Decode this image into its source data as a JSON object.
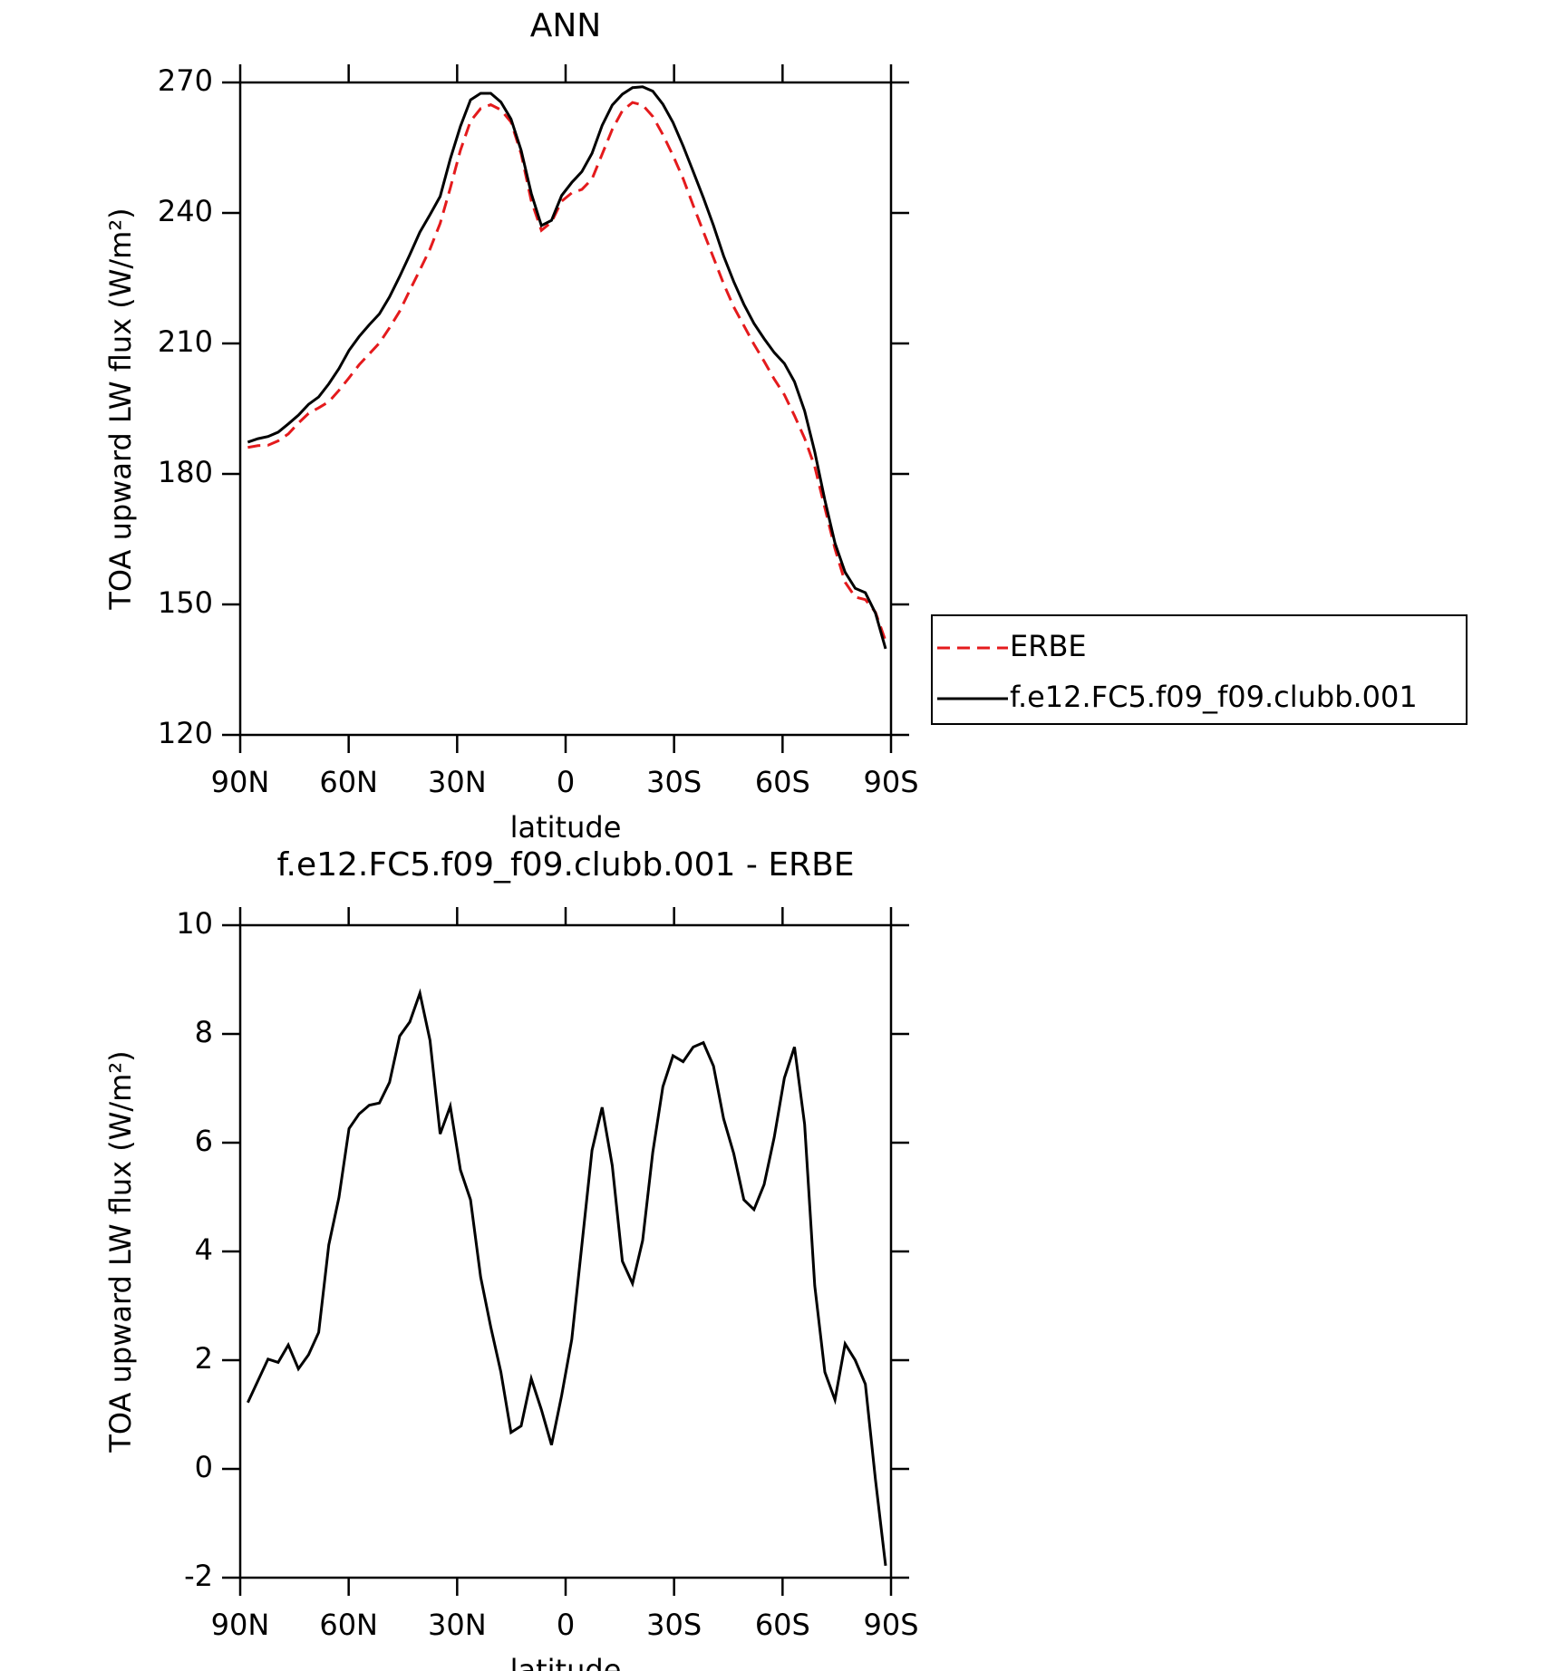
{
  "chart_data": [
    {
      "type": "line",
      "title": "ANN",
      "xlabel": "latitude",
      "ylabel": "TOA upward LW flux (W/m²)",
      "x": [
        87.9,
        85.1,
        82.3,
        79.5,
        76.7,
        73.9,
        71.1,
        68.3,
        65.5,
        62.7,
        59.9,
        57.1,
        54.3,
        51.5,
        48.7,
        45.9,
        43.1,
        40.3,
        37.5,
        34.7,
        31.9,
        29.1,
        26.3,
        23.5,
        20.7,
        17.9,
        15.1,
        12.3,
        9.5,
        6.7,
        3.9,
        1.1,
        -1.7,
        -4.5,
        -7.3,
        -10.1,
        -12.9,
        -15.7,
        -18.5,
        -21.3,
        -24.1,
        -26.9,
        -29.7,
        -32.5,
        -35.3,
        -38.1,
        -40.9,
        -43.7,
        -46.5,
        -49.3,
        -52.1,
        -54.9,
        -57.7,
        -60.5,
        -63.3,
        -66.1,
        -68.9,
        -71.7,
        -74.5,
        -77.3,
        -80.1,
        -82.9,
        -85.7,
        -88.5
      ],
      "series": [
        {
          "name": "ERBE",
          "color": "#e41a1c",
          "style": "dashed",
          "values": [
            186.1,
            186.5,
            186.6,
            187.6,
            189.2,
            191.7,
            193.9,
            195.2,
            196.6,
            199.2,
            202.1,
            205.1,
            207.6,
            210.1,
            213.6,
            217.4,
            222.2,
            226.9,
            231.7,
            237.6,
            245.7,
            254.4,
            261.1,
            264.0,
            264.9,
            263.7,
            260.9,
            253.6,
            242.8,
            236.0,
            237.9,
            242.7,
            244.6,
            245.4,
            247.8,
            253.5,
            259.2,
            263.5,
            265.4,
            264.8,
            262.2,
            258.0,
            253.2,
            247.9,
            241.7,
            235.7,
            229.7,
            223.7,
            218.4,
            214.1,
            209.8,
            205.9,
            201.8,
            198.2,
            193.4,
            188.2,
            181.7,
            172.2,
            162.8,
            155.1,
            151.7,
            151.1,
            148.2,
            141.6
          ]
        },
        {
          "name": "f.e12.FC5.f09_f09.clubb.001",
          "color": "#000000",
          "style": "solid",
          "values": [
            187.3,
            188.1,
            188.6,
            189.6,
            191.5,
            193.5,
            196.0,
            197.7,
            200.7,
            204.2,
            208.4,
            211.6,
            214.3,
            216.8,
            220.7,
            225.4,
            230.4,
            235.6,
            239.6,
            243.8,
            252.4,
            259.9,
            266.0,
            267.5,
            267.5,
            265.5,
            261.6,
            254.4,
            244.5,
            237.1,
            238.3,
            244.0,
            247.0,
            249.5,
            253.7,
            260.1,
            264.8,
            267.3,
            268.8,
            269.0,
            268.0,
            265.0,
            260.8,
            255.4,
            249.5,
            243.5,
            237.1,
            230.1,
            224.2,
            219.0,
            214.6,
            211.1,
            207.9,
            205.4,
            201.2,
            194.5,
            185.1,
            174.0,
            164.1,
            157.4,
            153.7,
            152.7,
            148.0,
            139.8
          ]
        }
      ],
      "xlim": [
        90,
        -90
      ],
      "xticks": [
        {
          "value": 90,
          "label": "90N"
        },
        {
          "value": 60,
          "label": "60N"
        },
        {
          "value": 30,
          "label": "30N"
        },
        0,
        {
          "value": -30,
          "label": "30S"
        },
        {
          "value": -60,
          "label": "60S"
        },
        {
          "value": -90,
          "label": "90S"
        }
      ],
      "ylim": [
        120,
        270
      ],
      "yticks": [
        120,
        150,
        180,
        210,
        240,
        270
      ],
      "legend": "right"
    },
    {
      "type": "line",
      "title": "f.e12.FC5.f09_f09.clubb.001 - ERBE",
      "xlabel": "latitude",
      "ylabel": "TOA upward LW flux (W/m²)",
      "x": [
        87.9,
        85.1,
        82.3,
        79.5,
        76.7,
        73.9,
        71.1,
        68.3,
        65.5,
        62.7,
        59.9,
        57.1,
        54.3,
        51.5,
        48.7,
        45.9,
        43.1,
        40.3,
        37.5,
        34.7,
        31.9,
        29.1,
        26.3,
        23.5,
        20.7,
        17.9,
        15.1,
        12.3,
        9.5,
        6.7,
        3.9,
        1.1,
        -1.7,
        -4.5,
        -7.3,
        -10.1,
        -12.9,
        -15.7,
        -18.5,
        -21.3,
        -24.1,
        -26.9,
        -29.7,
        -32.5,
        -35.3,
        -38.1,
        -40.9,
        -43.7,
        -46.5,
        -49.3,
        -52.1,
        -54.9,
        -57.7,
        -60.5,
        -63.3,
        -66.1,
        -68.9,
        -71.7,
        -74.5,
        -77.3,
        -80.1,
        -82.9,
        -85.7,
        -88.5
      ],
      "color": "#000000",
      "values": [
        1.22,
        1.62,
        2.02,
        1.96,
        2.28,
        1.84,
        2.1,
        2.51,
        4.12,
        4.99,
        6.26,
        6.53,
        6.69,
        6.73,
        7.11,
        7.96,
        8.22,
        8.75,
        7.88,
        6.16,
        6.67,
        5.5,
        4.95,
        3.53,
        2.61,
        1.78,
        0.67,
        0.79,
        1.66,
        1.09,
        0.44,
        1.35,
        2.38,
        4.12,
        5.86,
        6.65,
        5.58,
        3.82,
        3.41,
        4.2,
        5.82,
        7.03,
        7.6,
        7.49,
        7.76,
        7.84,
        7.41,
        6.44,
        5.8,
        4.95,
        4.77,
        5.23,
        6.1,
        7.19,
        7.76,
        6.34,
        3.37,
        1.78,
        1.27,
        2.3,
        2.0,
        1.56,
        -0.2,
        -1.78
      ],
      "xlim": [
        90,
        -90
      ],
      "xticks": [
        {
          "value": 90,
          "label": "90N"
        },
        {
          "value": 60,
          "label": "60N"
        },
        {
          "value": 30,
          "label": "30N"
        },
        0,
        {
          "value": -30,
          "label": "30S"
        },
        {
          "value": -60,
          "label": "60S"
        },
        {
          "value": -90,
          "label": "90S"
        }
      ],
      "ylim": [
        -2,
        10
      ],
      "yticks": [
        -2,
        0,
        2,
        4,
        6,
        8,
        10
      ]
    }
  ]
}
